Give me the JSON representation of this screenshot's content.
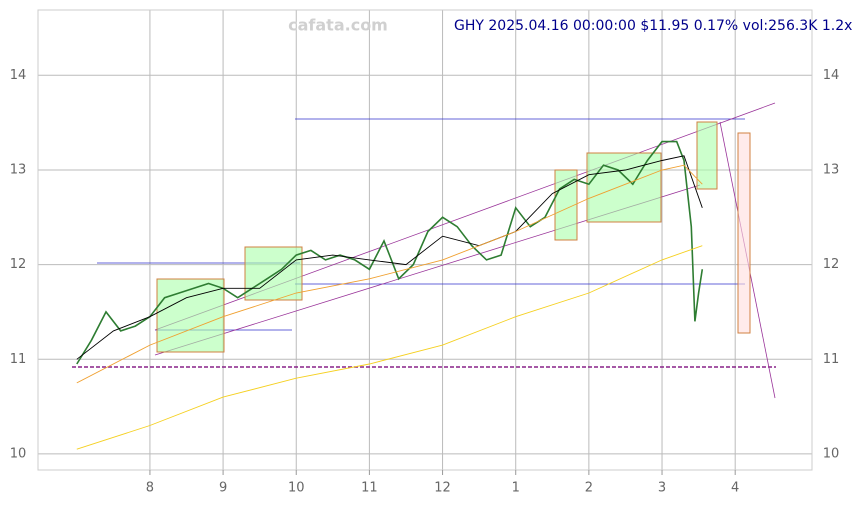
{
  "chart_data": {
    "type": "line",
    "title": "GHY 2025.04.16 00:00:00 $11.95 0.17% vol:256.3K 1.2x",
    "watermark": "cafata.com",
    "xlim": [
      -0.53,
      10.05
    ],
    "xticks": [
      {
        "value": 1,
        "label": "8"
      },
      {
        "value": 2,
        "label": "9"
      },
      {
        "value": 3,
        "label": "10"
      },
      {
        "value": 4,
        "label": "11"
      },
      {
        "value": 5,
        "label": "12"
      },
      {
        "value": 6,
        "label": "1"
      },
      {
        "value": 7,
        "label": "2"
      },
      {
        "value": 8,
        "label": "3"
      },
      {
        "value": 9,
        "label": "4"
      }
    ],
    "ylim": [
      9.83,
      14.69
    ],
    "yticks": [
      10,
      11,
      12,
      13,
      14
    ],
    "grid": true,
    "series": [
      {
        "color": "#2e7d32",
        "x": [
          0.0,
          0.2,
          0.4,
          0.6,
          0.8,
          1.0,
          1.2,
          1.4,
          1.6,
          1.8,
          2.0,
          2.2,
          2.4,
          2.6,
          2.8,
          3.0,
          3.2,
          3.4,
          3.6,
          3.8,
          4.0,
          4.2,
          4.4,
          4.6,
          4.8,
          5.0,
          5.2,
          5.4,
          5.6,
          5.8,
          6.0,
          6.2,
          6.4,
          6.6,
          6.8,
          7.0,
          7.2,
          7.4,
          7.6,
          7.8,
          8.0,
          8.2,
          8.3,
          8.4,
          8.45,
          8.5,
          8.55
        ],
        "values": [
          10.95,
          11.2,
          11.5,
          11.3,
          11.35,
          11.45,
          11.65,
          11.7,
          11.75,
          11.8,
          11.75,
          11.65,
          11.75,
          11.85,
          11.95,
          12.1,
          12.15,
          12.05,
          12.1,
          12.05,
          11.95,
          12.25,
          11.85,
          12.0,
          12.35,
          12.5,
          12.4,
          12.2,
          12.05,
          12.1,
          12.6,
          12.4,
          12.5,
          12.8,
          12.9,
          12.85,
          13.05,
          13.0,
          12.85,
          13.1,
          13.3,
          13.3,
          13.1,
          12.4,
          11.4,
          11.7,
          11.95
        ]
      },
      {
        "color": "#000000",
        "x": [
          0.0,
          0.5,
          1.0,
          1.5,
          2.0,
          2.5,
          3.0,
          3.5,
          4.0,
          4.5,
          5.0,
          5.5,
          6.0,
          6.5,
          7.0,
          7.5,
          8.0,
          8.3,
          8.55
        ],
        "values": [
          11.0,
          11.3,
          11.45,
          11.65,
          11.75,
          11.75,
          12.05,
          12.1,
          12.05,
          12.0,
          12.3,
          12.2,
          12.35,
          12.75,
          12.95,
          13.0,
          13.1,
          13.15,
          12.6
        ]
      },
      {
        "color": "#f0a030",
        "x": [
          0.0,
          1.0,
          2.0,
          3.0,
          4.0,
          5.0,
          6.0,
          7.0,
          8.0,
          8.3,
          8.55
        ],
        "values": [
          10.75,
          11.15,
          11.45,
          11.7,
          11.85,
          12.05,
          12.35,
          12.7,
          13.0,
          13.05,
          12.85
        ]
      },
      {
        "color": "#f5d020",
        "x": [
          0.0,
          1.0,
          2.0,
          3.0,
          4.0,
          5.0,
          6.0,
          7.0,
          8.0,
          8.55
        ],
        "values": [
          10.05,
          10.3,
          10.6,
          10.8,
          10.95,
          11.15,
          11.45,
          11.7,
          12.05,
          12.2
        ]
      }
    ]
  }
}
